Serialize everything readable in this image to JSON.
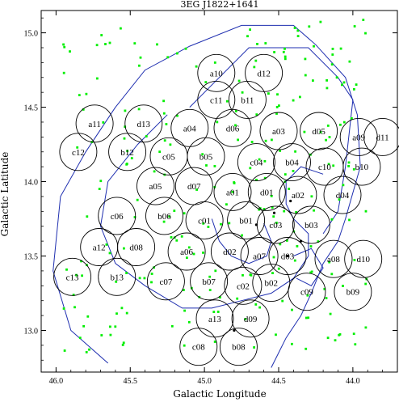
{
  "chart_data": {
    "type": "scatter",
    "title": "3EG J1822+1641",
    "xlabel": "Galactic Longitude",
    "ylabel": "Galactic Latitude",
    "xlim": [
      46.1,
      43.7
    ],
    "ylim": [
      12.72,
      15.15
    ],
    "x_reversed": true,
    "x_ticks": [
      46.0,
      45.5,
      45.0,
      44.5,
      44.0
    ],
    "x_tick_labels": [
      "46.0",
      "45.5",
      "45.0",
      "44.5",
      "44.0"
    ],
    "y_ticks": [
      13.0,
      13.5,
      14.0,
      14.5,
      15.0
    ],
    "y_tick_labels": [
      "13.0",
      "13.5",
      "14.0",
      "14.5",
      "15.0"
    ],
    "grid": false,
    "fields": [
      {
        "label": "a10",
        "l": 44.92,
        "b": 14.73
      },
      {
        "label": "d12",
        "l": 44.6,
        "b": 14.73
      },
      {
        "label": "c11",
        "l": 44.92,
        "b": 14.55
      },
      {
        "label": "b11",
        "l": 44.71,
        "b": 14.55
      },
      {
        "label": "a11",
        "l": 45.74,
        "b": 14.39
      },
      {
        "label": "d13",
        "l": 45.41,
        "b": 14.39
      },
      {
        "label": "a04",
        "l": 45.1,
        "b": 14.36
      },
      {
        "label": "d06",
        "l": 44.81,
        "b": 14.36
      },
      {
        "label": "a03",
        "l": 44.5,
        "b": 14.34
      },
      {
        "label": "d05",
        "l": 44.23,
        "b": 14.34
      },
      {
        "label": "a09",
        "l": 43.96,
        "b": 14.3
      },
      {
        "label": "d11",
        "l": 43.8,
        "b": 14.3
      },
      {
        "label": "c12",
        "l": 45.85,
        "b": 14.2
      },
      {
        "label": "b12",
        "l": 45.52,
        "b": 14.2
      },
      {
        "label": "c05",
        "l": 45.24,
        "b": 14.17
      },
      {
        "label": "b05",
        "l": 44.99,
        "b": 14.17
      },
      {
        "label": "c04",
        "l": 44.65,
        "b": 14.13
      },
      {
        "label": "b04",
        "l": 44.41,
        "b": 14.13
      },
      {
        "label": "c10",
        "l": 44.19,
        "b": 14.1
      },
      {
        "label": "b10",
        "l": 43.94,
        "b": 14.1
      },
      {
        "label": "a05",
        "l": 45.33,
        "b": 13.97
      },
      {
        "label": "d07",
        "l": 45.07,
        "b": 13.97
      },
      {
        "label": "a01",
        "l": 44.81,
        "b": 13.93
      },
      {
        "label": "d01",
        "l": 44.58,
        "b": 13.93
      },
      {
        "label": "a02",
        "l": 44.37,
        "b": 13.91
      },
      {
        "label": "d04",
        "l": 44.07,
        "b": 13.91
      },
      {
        "label": "c06",
        "l": 45.59,
        "b": 13.77
      },
      {
        "label": "b06",
        "l": 45.27,
        "b": 13.77
      },
      {
        "label": "c01",
        "l": 45.0,
        "b": 13.74
      },
      {
        "label": "b01",
        "l": 44.72,
        "b": 13.74
      },
      {
        "label": "c03",
        "l": 44.52,
        "b": 13.71
      },
      {
        "label": "b03",
        "l": 44.28,
        "b": 13.71
      },
      {
        "label": "a12",
        "l": 45.71,
        "b": 13.56
      },
      {
        "label": "d08",
        "l": 45.46,
        "b": 13.56
      },
      {
        "label": "a06",
        "l": 45.12,
        "b": 13.53
      },
      {
        "label": "d02",
        "l": 44.83,
        "b": 13.53
      },
      {
        "label": "a07",
        "l": 44.63,
        "b": 13.5
      },
      {
        "label": "d03",
        "l": 44.44,
        "b": 13.5
      },
      {
        "label": "a08",
        "l": 44.13,
        "b": 13.48
      },
      {
        "label": "d10",
        "l": 43.93,
        "b": 13.48
      },
      {
        "label": "c13",
        "l": 45.89,
        "b": 13.36
      },
      {
        "label": "b13",
        "l": 45.59,
        "b": 13.36
      },
      {
        "label": "c07",
        "l": 45.26,
        "b": 13.33
      },
      {
        "label": "b07",
        "l": 44.97,
        "b": 13.33
      },
      {
        "label": "c02",
        "l": 44.74,
        "b": 13.3
      },
      {
        "label": "b02",
        "l": 44.55,
        "b": 13.32
      },
      {
        "label": "c09",
        "l": 44.31,
        "b": 13.26
      },
      {
        "label": "b09",
        "l": 44.0,
        "b": 13.26
      },
      {
        "label": "a13",
        "l": 44.93,
        "b": 13.08
      },
      {
        "label": "d09",
        "l": 44.69,
        "b": 13.08
      },
      {
        "label": "c08",
        "l": 45.04,
        "b": 12.89
      },
      {
        "label": "b08",
        "l": 44.77,
        "b": 12.89
      }
    ],
    "field_radius_deg": 0.125,
    "sources": {
      "color": "#00ee00",
      "count": 260,
      "seed": 7
    },
    "black_markers": [
      {
        "l": 44.65,
        "b": 13.71
      },
      {
        "l": 44.53,
        "b": 13.79
      },
      {
        "l": 44.42,
        "b": 13.87
      },
      {
        "l": 44.44,
        "b": 13.5
      },
      {
        "l": 44.35,
        "b": 13.6
      },
      {
        "l": 44.8,
        "b": 13.0
      }
    ],
    "contours": {
      "color": "#1f2fb0",
      "outer": [
        [
          45.1,
          14.5
        ],
        [
          44.7,
          14.9
        ],
        [
          44.3,
          14.9
        ],
        [
          44.1,
          14.7
        ],
        [
          44.0,
          14.55
        ],
        [
          44.05,
          14.1
        ],
        [
          44.1,
          13.8
        ],
        [
          44.2,
          13.65
        ]
      ],
      "large": [
        [
          45.65,
          12.78
        ],
        [
          45.9,
          13.0
        ],
        [
          46.02,
          13.4
        ],
        [
          45.97,
          13.9
        ],
        [
          45.8,
          14.2
        ],
        [
          45.6,
          14.5
        ],
        [
          45.4,
          14.75
        ],
        [
          45.1,
          14.91
        ],
        [
          44.75,
          15.05
        ],
        [
          44.4,
          15.05
        ],
        [
          44.25,
          14.92
        ],
        [
          44.05,
          14.7
        ],
        [
          43.97,
          14.45
        ],
        [
          43.95,
          14.1
        ],
        [
          44.05,
          13.75
        ],
        [
          44.1,
          13.6
        ],
        [
          44.2,
          13.45
        ],
        [
          44.28,
          13.25
        ],
        [
          44.35,
          13.1
        ],
        [
          44.45,
          12.95
        ],
        [
          44.5,
          12.85
        ],
        [
          44.55,
          12.75
        ]
      ],
      "inner": [
        [
          45.25,
          14.45
        ],
        [
          45.45,
          14.25
        ],
        [
          45.65,
          14.0
        ],
        [
          45.7,
          13.7
        ],
        [
          45.6,
          13.45
        ],
        [
          45.4,
          13.3
        ],
        [
          45.15,
          13.15
        ],
        [
          44.95,
          13.15
        ],
        [
          44.75,
          13.2
        ],
        [
          44.55,
          13.25
        ],
        [
          44.4,
          13.35
        ],
        [
          44.3,
          13.5
        ],
        [
          44.3,
          13.65
        ],
        [
          44.4,
          13.75
        ],
        [
          44.45,
          13.85
        ],
        [
          44.45,
          14.0
        ],
        [
          44.35,
          14.1
        ],
        [
          44.2,
          14.05
        ]
      ],
      "small": [
        [
          44.95,
          13.75
        ],
        [
          44.9,
          13.6
        ],
        [
          44.82,
          13.5
        ],
        [
          44.7,
          13.45
        ],
        [
          44.58,
          13.5
        ],
        [
          44.55,
          13.6
        ],
        [
          44.6,
          13.72
        ]
      ],
      "sgroup": [
        [
          44.4,
          13.5
        ],
        [
          44.28,
          13.55
        ],
        [
          44.2,
          13.42
        ],
        [
          44.28,
          13.3
        ],
        [
          44.38,
          13.35
        ]
      ]
    }
  }
}
